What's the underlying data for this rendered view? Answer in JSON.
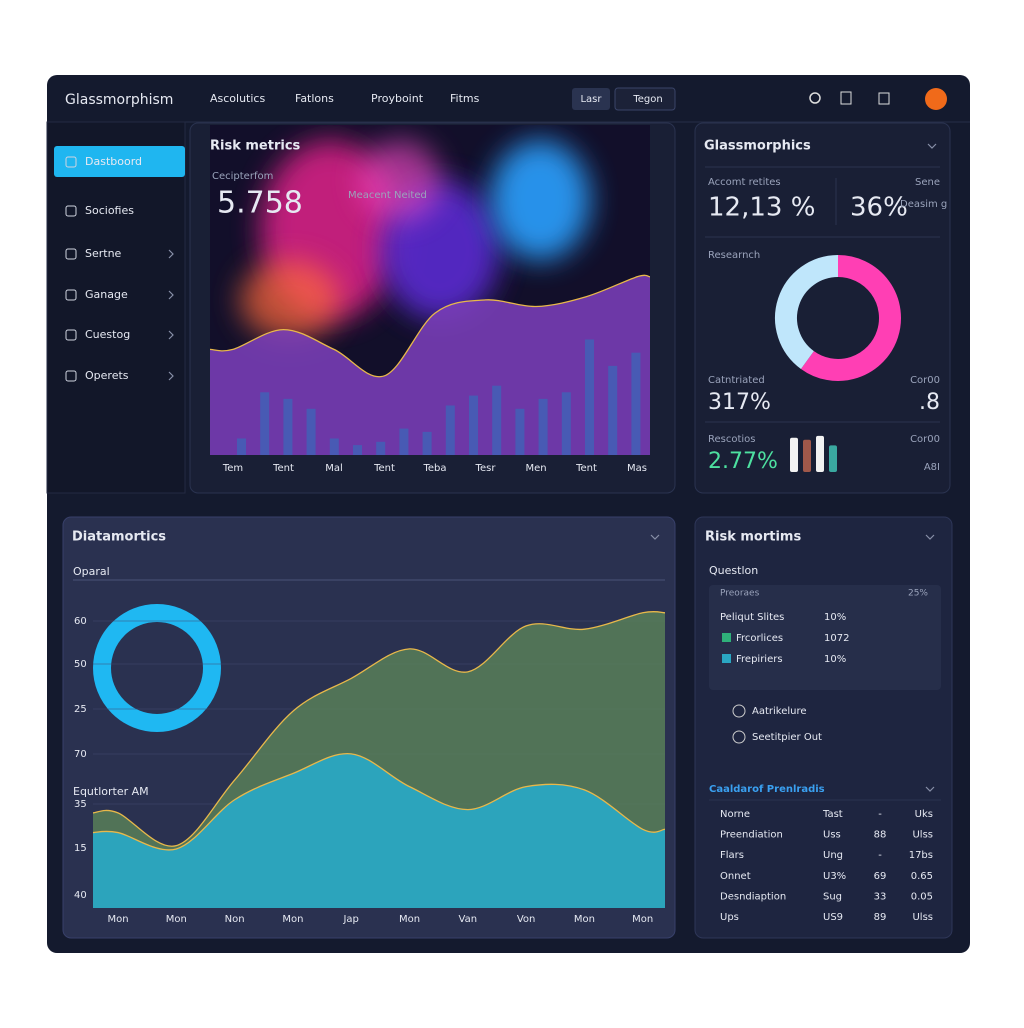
{
  "header": {
    "brand": "Glassmorphism",
    "nav": [
      "Ascolutics",
      "Fatlons",
      "Proyboint",
      "Fitms"
    ],
    "buttons": [
      "Lasr",
      "Tegon"
    ]
  },
  "sidebar": {
    "items": [
      "Dastboord",
      "Sociofies",
      "Sertne",
      "Ganage",
      "Cuestog",
      "Operets"
    ]
  },
  "risk_panel": {
    "title": "Risk metrics",
    "stat_label": "Cecipterfom",
    "stat_value": "5.758",
    "annotation": "Meacent Neited",
    "chart_data": [
      {
        "type": "area",
        "categories": [
          "Tem",
          "Tent",
          "Mal",
          "Tent",
          "Teba",
          "Tesr",
          "Men",
          "Tent",
          "Mas"
        ],
        "values": [
          32,
          38,
          32,
          24,
          43,
          47,
          45,
          48,
          54
        ],
        "color": "#7a3fb8",
        "ylim": [
          0,
          100
        ]
      },
      {
        "type": "bar",
        "values": [
          5,
          19,
          17,
          14,
          5,
          3,
          4,
          8,
          7,
          15,
          18,
          21,
          14,
          17,
          19,
          35,
          27,
          31
        ],
        "color": "#3f63b8",
        "ylim": [
          0,
          100
        ]
      }
    ]
  },
  "glass_panel": {
    "title": "Glassmorphics",
    "metrics": [
      {
        "label": "Accomt retites",
        "value": "12,13 %"
      },
      {
        "label": "Sene",
        "value": "36%",
        "note": "Deasim g"
      }
    ],
    "donut_label": "Researnch",
    "chart_data": {
      "type": "pie",
      "values": [
        60,
        40
      ],
      "colors": [
        "#ff3fb4",
        "#bfe6fb"
      ]
    },
    "stats": [
      {
        "label": "Catntriated",
        "value": "317%"
      },
      {
        "label": "Cor00",
        "value": ".8"
      },
      {
        "label": "Rescotios",
        "value": "2.77%"
      },
      {
        "label": "Cor00",
        "value": "A8I"
      }
    ],
    "mini_chart": {
      "type": "bar",
      "values": [
        36,
        34,
        38,
        28
      ],
      "colors": [
        "#f2f2f2",
        "#a0584a",
        "#f2f2f2",
        "#3aa8a0"
      ],
      "ylim": [
        0,
        40
      ]
    }
  },
  "bottom_panel": {
    "title": "Diatamortics",
    "subtitle": "Oparal",
    "annotation": "Equtlorter AM",
    "y_labels": [
      "60",
      "50",
      "25",
      "70",
      "35",
      "15",
      "40"
    ],
    "chart_data": {
      "type": "area",
      "categories": [
        "Mon",
        "Mon",
        "Non",
        "Mon",
        "Jap",
        "Mon",
        "Van",
        "Von",
        "Mon",
        "Mon"
      ],
      "ylim": [
        0,
        100
      ],
      "series": [
        {
          "color": "#5f8a5a",
          "values": [
            29,
            19,
            39,
            60,
            70,
            79,
            72,
            86,
            85,
            90
          ]
        },
        {
          "color": "#2aa6c2",
          "values": [
            23,
            18,
            33,
            41,
            47,
            37,
            30,
            37,
            36,
            24
          ]
        }
      ]
    }
  },
  "right_panel": {
    "title": "Risk mortims",
    "section": "Questlon",
    "table_header": [
      "Preoraes",
      "25%"
    ],
    "rows": [
      [
        "Peliqut Slites",
        "10%"
      ],
      [
        "Frcorlices",
        "1072"
      ],
      [
        "Frepiriers",
        "10%"
      ]
    ],
    "radios": [
      "Aatrikelure",
      "Seetitpier Out"
    ],
    "section2": "Caaldarof Prenlradis",
    "table2": [
      [
        "Norne",
        "Tast",
        "-",
        "Uks"
      ],
      [
        "Preendiation",
        "Uss",
        "88",
        "Ulss"
      ],
      [
        "Flars",
        "Ung",
        "-",
        "17bs"
      ],
      [
        "Onnet",
        "U3%",
        "69",
        "0.65"
      ],
      [
        "Desndiaption",
        "Sug",
        "33",
        "0.05"
      ],
      [
        "Ups",
        "US9",
        "89",
        "Ulss"
      ]
    ]
  }
}
